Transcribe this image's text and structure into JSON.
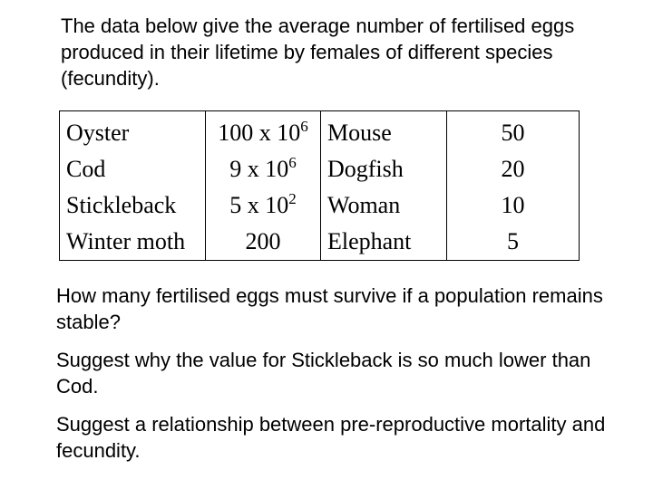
{
  "intro": "The data below give the average number of fertilised eggs produced in their lifetime by females of different species (fecundity).",
  "table": {
    "rows": [
      {
        "species1": "Oyster",
        "value1_base": "100 x 10",
        "value1_exp": "6",
        "species2": "Mouse",
        "value2": "50"
      },
      {
        "species1": "Cod",
        "value1_base": "9 x 10",
        "value1_exp": "6",
        "species2": "Dogfish",
        "value2": "20"
      },
      {
        "species1": "Stickleback",
        "value1_base": "5 x 10",
        "value1_exp": "2",
        "species2": "Woman",
        "value2": "10"
      },
      {
        "species1": "Winter moth",
        "value1_base": "200",
        "value1_exp": "",
        "species2": "Elephant",
        "value2": "5"
      }
    ]
  },
  "questions": [
    "How many fertilised eggs must survive if a population remains stable?",
    "Suggest why the value for Stickleback is so much lower than Cod.",
    "Suggest a relationship between pre-reproductive mortality and fecundity."
  ]
}
